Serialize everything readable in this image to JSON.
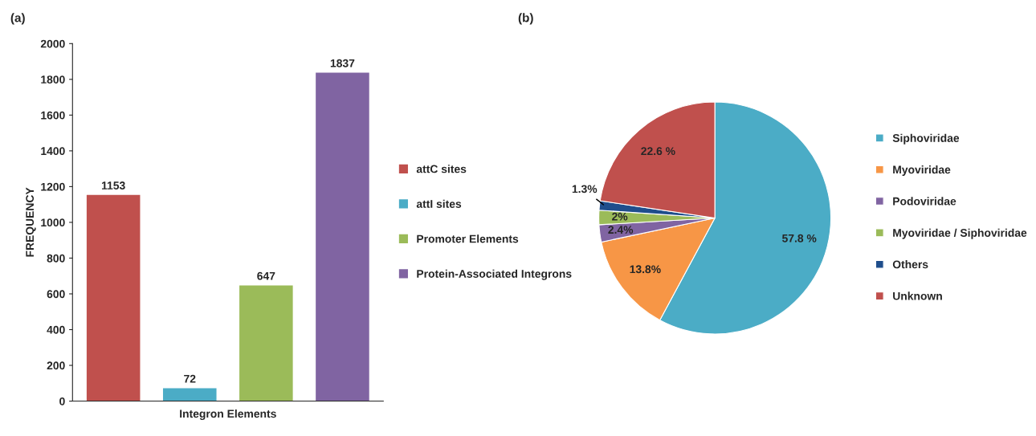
{
  "chart_data": [
    {
      "type": "bar",
      "title": "(a)",
      "xlabel": "Integron Elements",
      "ylabel": "FREQUENCY",
      "categories": [
        null,
        null,
        null,
        null
      ],
      "series": [
        {
          "name": "attC sites",
          "color": "#c0504d",
          "values": [
            1153,
            null,
            null,
            null
          ]
        },
        {
          "name": "attI sites",
          "color": "#4bacc6",
          "values": [
            null,
            72,
            null,
            null
          ]
        },
        {
          "name": "Promoter Elements",
          "color": "#9bbb59",
          "values": [
            null,
            null,
            647,
            null
          ]
        },
        {
          "name": "Protein-Associated Integrons",
          "color": "#8064a2",
          "values": [
            null,
            null,
            null,
            1837
          ]
        }
      ],
      "ylim": [
        0,
        2000
      ],
      "yticks": [
        0,
        200,
        400,
        600,
        800,
        1000,
        1200,
        1400,
        1600,
        1800,
        2000
      ],
      "data_labels": true,
      "legend": "right",
      "grid": false
    },
    {
      "type": "pie",
      "title": "(b)",
      "categories": [
        "Siphoviridae",
        "Myoviridae",
        "Podoviridae",
        "Myoviridae / Siphoviridae",
        "Others",
        "Unknown"
      ],
      "values": [
        57.8,
        13.8,
        2.4,
        2,
        1.3,
        22.6
      ],
      "colors": [
        "#4bacc6",
        "#f79646",
        "#8064a2",
        "#9bbb59",
        "#1f4e8c",
        "#c0504d"
      ],
      "value_labels": [
        "57.8 %",
        "13.8%",
        "2.4%",
        "2%",
        "1.3%",
        "22.6 %"
      ],
      "legend": "right"
    }
  ]
}
